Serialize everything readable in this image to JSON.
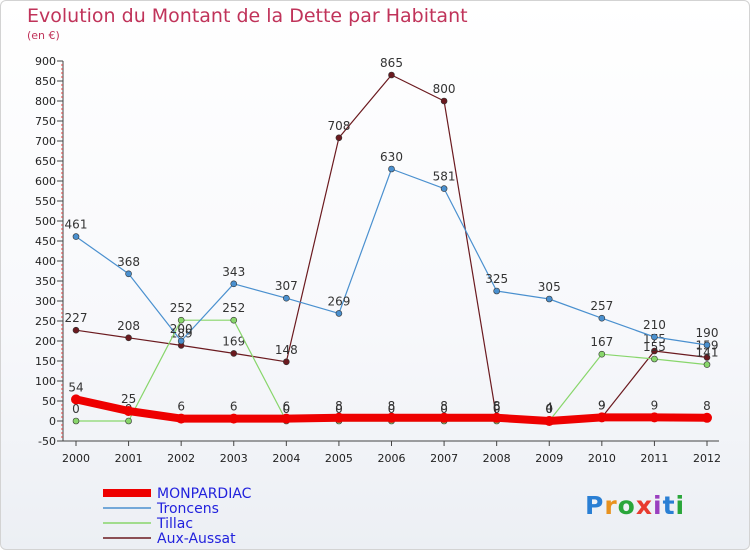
{
  "title": "Evolution du Montant de la Dette par Habitant",
  "subtitle": "(en €)",
  "logo": {
    "text": "Proxiti",
    "colors": [
      "#2a7fd4",
      "#e8921f",
      "#2aa63a",
      "#e83b2f",
      "#9a3fbf",
      "#2a7fd4",
      "#2aa63a"
    ]
  },
  "chart_data": {
    "type": "line",
    "x": [
      "2000",
      "2001",
      "2002",
      "2003",
      "2004",
      "2005",
      "2006",
      "2007",
      "2008",
      "2009",
      "2010",
      "2011",
      "2012"
    ],
    "ylim": [
      -50,
      900
    ],
    "yticks": [
      -50,
      0,
      50,
      100,
      150,
      200,
      250,
      300,
      350,
      400,
      450,
      500,
      550,
      600,
      650,
      700,
      750,
      800,
      850,
      900
    ],
    "grid": false,
    "legend_position": "bottom-left",
    "series": [
      {
        "name": "Aux-Aussat",
        "color": "#6b1a1f",
        "values": [
          227,
          208,
          189,
          169,
          148,
          708,
          865,
          800,
          6,
          4,
          9,
          175,
          159
        ],
        "labels": [
          "227",
          "208",
          "189",
          "169",
          "148",
          "708",
          "865",
          "800",
          "6",
          "4",
          "9",
          "175",
          "159"
        ]
      },
      {
        "name": "Tillac",
        "color": "#88d66b",
        "values": [
          0,
          0,
          252,
          252,
          0,
          0,
          0,
          0,
          0,
          0,
          167,
          155,
          141
        ],
        "labels": [
          "0",
          "0",
          "252",
          "252",
          "0",
          "0",
          "0",
          "0",
          "0",
          "0",
          "167",
          "155",
          "141"
        ]
      },
      {
        "name": "Troncens",
        "color": "#4a90cf",
        "values": [
          461,
          368,
          200,
          343,
          307,
          269,
          630,
          581,
          325,
          305,
          257,
          210,
          190
        ],
        "labels": [
          "461",
          "368",
          "200",
          "343",
          "307",
          "269",
          "630",
          "581",
          "325",
          "305",
          "257",
          "210",
          "190"
        ]
      },
      {
        "name": "MONPARDIAC",
        "color": "#ee0000",
        "values": [
          54,
          25,
          6,
          6,
          6,
          8,
          8,
          8,
          8,
          0,
          9,
          9,
          8
        ],
        "labels": [
          "54",
          "25",
          "6",
          "6",
          "6",
          "8",
          "8",
          "8",
          "8",
          "0",
          "9",
          "9",
          "8"
        ]
      }
    ],
    "legend_order": [
      "MONPARDIAC",
      "Troncens",
      "Tillac",
      "Aux-Aussat"
    ]
  }
}
